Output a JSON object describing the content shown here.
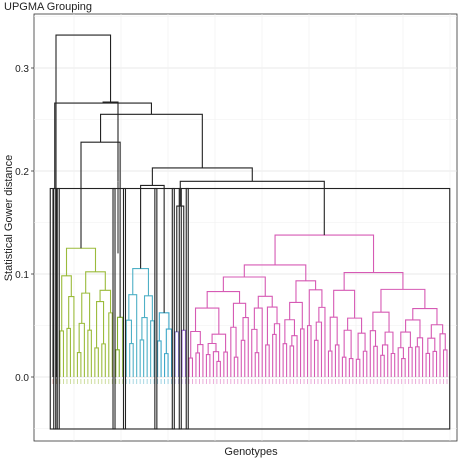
{
  "chart_data": {
    "type": "dendrogram",
    "title": "UPGMA Grouping",
    "xlabel": "Genotypes",
    "ylabel": "Statistical Gower distance",
    "ylim": [
      -0.05,
      0.35
    ],
    "y_ticks": [
      0.0,
      0.1,
      0.2,
      0.3
    ],
    "y_tick_labels": [
      "0.0",
      "0.1",
      "0.2",
      "0.3"
    ],
    "grid": true,
    "cluster_boxes": 9,
    "clusters": [
      {
        "color": "#c0504d",
        "leaves": 1
      },
      {
        "color": "#8b6914",
        "leaves": 1
      },
      {
        "color": "#9bbb3b",
        "leaves": 16
      },
      {
        "color": "#7fae28",
        "leaves": 3
      },
      {
        "color": "#4fb0c6",
        "leaves": 9
      },
      {
        "color": "#3aa6c8",
        "leaves": 5
      },
      {
        "color": "#8a7fd6",
        "leaves": 2
      },
      {
        "color": "#a070e0",
        "leaves": 2
      },
      {
        "color": "#d65ab4",
        "leaves": 75
      }
    ],
    "merges": [
      {
        "left": "cluster-1",
        "right": "cluster-2",
        "height": 0.183
      },
      {
        "left": "cluster-3",
        "right": "cluster-4",
        "height": 0.228
      },
      {
        "left": "cluster-5",
        "right": "cluster-6",
        "height": 0.186
      },
      {
        "left": "cluster-7",
        "right": "cluster-8",
        "height": 0.166
      },
      {
        "left": "merge-4",
        "right": "cluster-9",
        "height": 0.19
      },
      {
        "left": "merge-3",
        "right": "merge-5",
        "height": 0.203
      },
      {
        "left": "merge-6",
        "right": "merge-2",
        "height": 0.255
      },
      {
        "left": "merge-1",
        "right": "merge-7",
        "height": 0.266
      },
      {
        "left": "merge-8",
        "right": "root-side",
        "height": 0.267
      },
      {
        "left": "cluster-left",
        "right": "merge-9",
        "height": 0.332
      }
    ]
  }
}
